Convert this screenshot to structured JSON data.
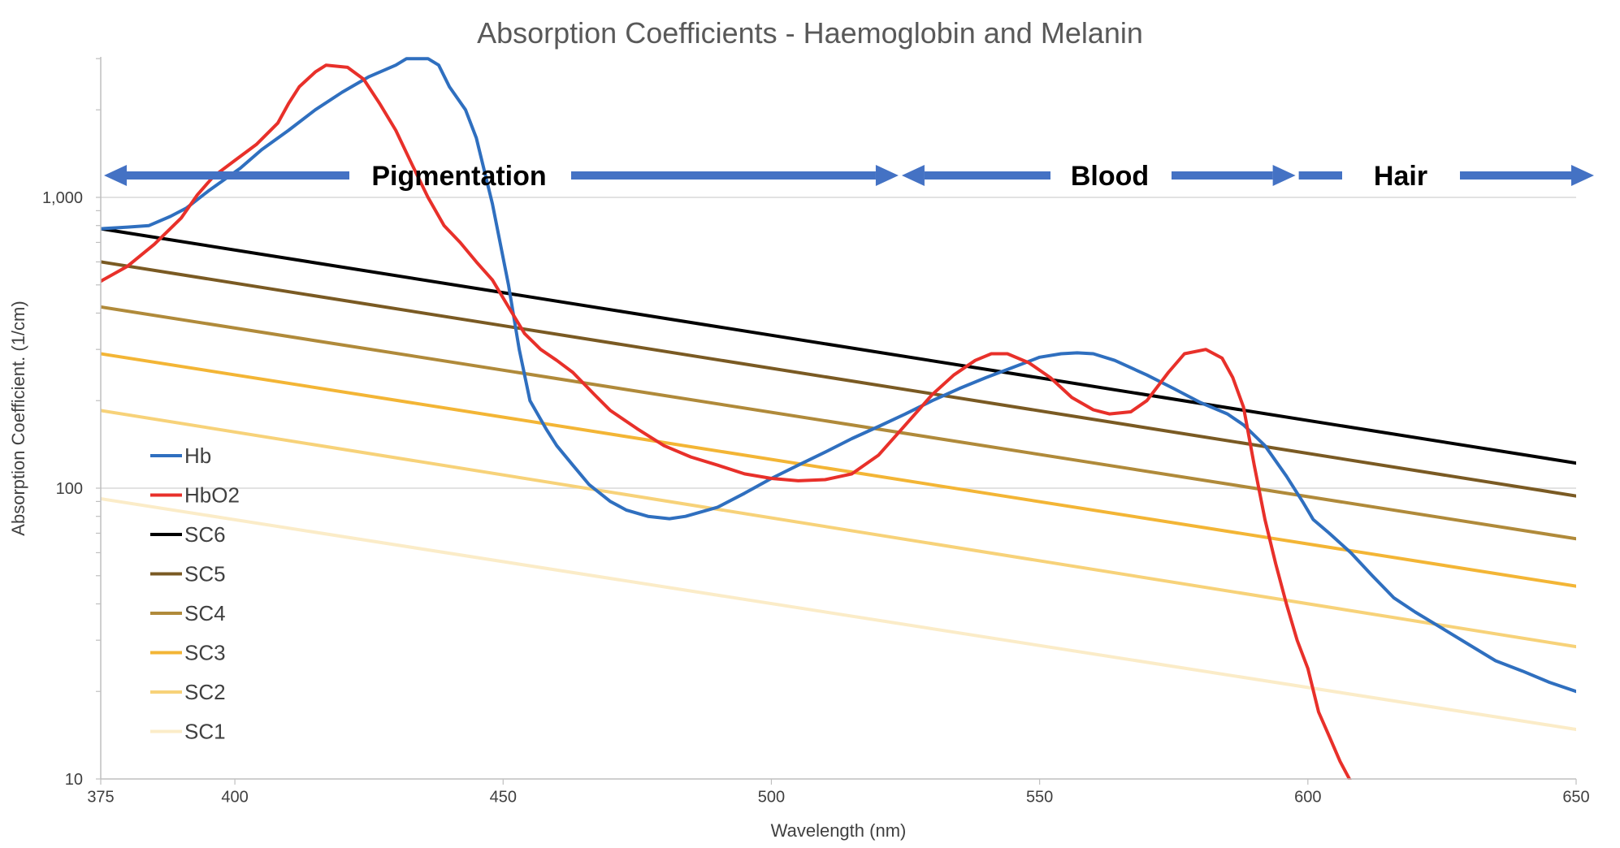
{
  "chart_data": {
    "type": "line",
    "title": "Absorption Coefficients - Haemoglobin and Melanin",
    "xlabel": "Wavelength (nm)",
    "ylabel": "Absorption Coefficient. (1/cm)",
    "xlim": [
      375,
      650
    ],
    "ylim": [
      10,
      3000
    ],
    "yscale": "log",
    "x_ticks": [
      "375",
      "400",
      "450",
      "500",
      "550",
      "600",
      "650"
    ],
    "y_ticks": [
      "10",
      "100",
      "1,000"
    ],
    "grid": "horizontal",
    "legend_position": "left",
    "series": [
      {
        "name": "Hb",
        "color": "#2f6fbf",
        "width": 4,
        "points": [
          [
            375,
            780
          ],
          [
            380,
            790
          ],
          [
            384,
            800
          ],
          [
            388,
            860
          ],
          [
            391,
            920
          ],
          [
            395,
            1050
          ],
          [
            398,
            1150
          ],
          [
            401,
            1260
          ],
          [
            405,
            1460
          ],
          [
            410,
            1700
          ],
          [
            415,
            2000
          ],
          [
            420,
            2300
          ],
          [
            425,
            2600
          ],
          [
            430,
            2850
          ],
          [
            432,
            3000
          ],
          [
            436,
            3000
          ],
          [
            438,
            2850
          ],
          [
            440,
            2400
          ],
          [
            443,
            2000
          ],
          [
            445,
            1600
          ],
          [
            448,
            950
          ],
          [
            451,
            500
          ],
          [
            453,
            300
          ],
          [
            455,
            200
          ],
          [
            458,
            160
          ],
          [
            460,
            140
          ],
          [
            463,
            120
          ],
          [
            466,
            103
          ],
          [
            470,
            90
          ],
          [
            473,
            84
          ],
          [
            477,
            80
          ],
          [
            481,
            78.5
          ],
          [
            484,
            80
          ],
          [
            490,
            86
          ],
          [
            495,
            96
          ],
          [
            500,
            108
          ],
          [
            505,
            120
          ],
          [
            510,
            133
          ],
          [
            515,
            148
          ],
          [
            520,
            163
          ],
          [
            525,
            180
          ],
          [
            530,
            200
          ],
          [
            535,
            220
          ],
          [
            540,
            240
          ],
          [
            545,
            260
          ],
          [
            550,
            282
          ],
          [
            554,
            290
          ],
          [
            557,
            292
          ],
          [
            560,
            290
          ],
          [
            564,
            275
          ],
          [
            570,
            245
          ],
          [
            575,
            220
          ],
          [
            580,
            197
          ],
          [
            585,
            180
          ],
          [
            588,
            165
          ],
          [
            592,
            140
          ],
          [
            596,
            110
          ],
          [
            599,
            90
          ],
          [
            601,
            78
          ],
          [
            604,
            70
          ],
          [
            608,
            60
          ],
          [
            612,
            50
          ],
          [
            616,
            42
          ],
          [
            620,
            37.5
          ],
          [
            625,
            33
          ],
          [
            630,
            29
          ],
          [
            635,
            25.5
          ],
          [
            640,
            23.5
          ],
          [
            645,
            21.5
          ],
          [
            650,
            20
          ]
        ]
      },
      {
        "name": "HbO2",
        "color": "#e8302a",
        "width": 4,
        "points": [
          [
            375,
            515
          ],
          [
            380,
            580
          ],
          [
            385,
            690
          ],
          [
            390,
            850
          ],
          [
            393,
            1020
          ],
          [
            396,
            1180
          ],
          [
            400,
            1340
          ],
          [
            404,
            1520
          ],
          [
            408,
            1800
          ],
          [
            410,
            2100
          ],
          [
            412,
            2400
          ],
          [
            415,
            2700
          ],
          [
            417,
            2850
          ],
          [
            421,
            2800
          ],
          [
            424,
            2550
          ],
          [
            427,
            2100
          ],
          [
            430,
            1700
          ],
          [
            433,
            1300
          ],
          [
            436,
            1000
          ],
          [
            439,
            800
          ],
          [
            442,
            700
          ],
          [
            445,
            600
          ],
          [
            448,
            520
          ],
          [
            451,
            420
          ],
          [
            454,
            340
          ],
          [
            457,
            300
          ],
          [
            460,
            275
          ],
          [
            463,
            250
          ],
          [
            467,
            210
          ],
          [
            470,
            185
          ],
          [
            475,
            160
          ],
          [
            480,
            140
          ],
          [
            485,
            128
          ],
          [
            490,
            120
          ],
          [
            495,
            112
          ],
          [
            500,
            108
          ],
          [
            505,
            106
          ],
          [
            510,
            107
          ],
          [
            515,
            112
          ],
          [
            520,
            130
          ],
          [
            525,
            165
          ],
          [
            530,
            210
          ],
          [
            534,
            245
          ],
          [
            538,
            275
          ],
          [
            541,
            290
          ],
          [
            544,
            290
          ],
          [
            548,
            270
          ],
          [
            552,
            240
          ],
          [
            556,
            205
          ],
          [
            560,
            186
          ],
          [
            563,
            180
          ],
          [
            567,
            183
          ],
          [
            570,
            200
          ],
          [
            574,
            250
          ],
          [
            577,
            290
          ],
          [
            581,
            300
          ],
          [
            584,
            280
          ],
          [
            586,
            240
          ],
          [
            588,
            190
          ],
          [
            590,
            120
          ],
          [
            592,
            78
          ],
          [
            594,
            55
          ],
          [
            596,
            40
          ],
          [
            598,
            30
          ],
          [
            600,
            24
          ],
          [
            602,
            17
          ],
          [
            604,
            14
          ],
          [
            606,
            11.5
          ],
          [
            608,
            9.8
          ]
        ]
      },
      {
        "name": "SC6",
        "color": "#000000",
        "width": 4,
        "points": [
          [
            375,
            780
          ],
          [
            650,
            122
          ]
        ]
      },
      {
        "name": "SC5",
        "color": "#7a5a23",
        "width": 4,
        "points": [
          [
            375,
            600
          ],
          [
            650,
            94
          ]
        ]
      },
      {
        "name": "SC4",
        "color": "#b08a3a",
        "width": 4,
        "points": [
          [
            375,
            420
          ],
          [
            650,
            67
          ]
        ]
      },
      {
        "name": "SC3",
        "color": "#f3b535",
        "width": 4,
        "points": [
          [
            375,
            290
          ],
          [
            650,
            46
          ]
        ]
      },
      {
        "name": "SC2",
        "color": "#f7d279",
        "width": 4,
        "points": [
          [
            375,
            185
          ],
          [
            650,
            28.5
          ]
        ]
      },
      {
        "name": "SC1",
        "color": "#fbecc8",
        "width": 4,
        "points": [
          [
            375,
            92
          ],
          [
            650,
            14.8
          ]
        ]
      }
    ],
    "annotations": [
      {
        "text": "Pigmentation",
        "from": 375,
        "to": 524,
        "direction": "both"
      },
      {
        "text": "Blood",
        "from": 524,
        "to": 598,
        "direction": "both"
      },
      {
        "text": "Hair",
        "from": 598,
        "to": 650,
        "direction": "right"
      }
    ],
    "annotation_arrow_color": "#4472c4"
  }
}
